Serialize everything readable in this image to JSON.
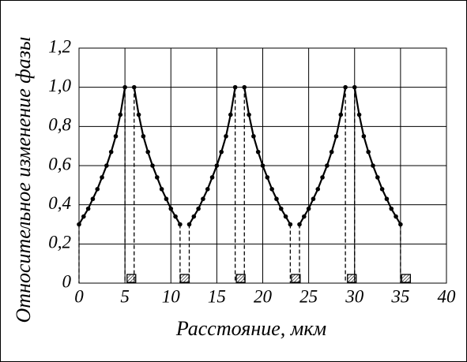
{
  "chart_data": {
    "type": "line",
    "xlabel": "Расстояние, мкм",
    "ylabel": "Относительное изменение фазы",
    "xlim": [
      0,
      40
    ],
    "xticks": [
      0,
      5,
      10,
      15,
      20,
      25,
      30,
      35,
      40
    ],
    "ylim": [
      0,
      1.2
    ],
    "yticks": [
      0,
      {
        "value": 0.2,
        "label": "0,2"
      },
      {
        "value": 0.4,
        "label": "0,4"
      },
      {
        "value": 0.6,
        "label": "0,6"
      },
      {
        "value": 0.8,
        "label": "0,8"
      },
      {
        "value": 1.0,
        "label": "1,0"
      },
      {
        "value": 1.2,
        "label": "1,2"
      }
    ],
    "grid": true,
    "color": "#000000",
    "series": [
      {
        "x": [
          0,
          0.5,
          1,
          1.5,
          2,
          2.5,
          3,
          3.5,
          4,
          4.5,
          5
        ],
        "values": [
          0.3,
          0.34,
          0.38,
          0.43,
          0.48,
          0.54,
          0.6,
          0.67,
          0.75,
          0.86,
          1.0
        ]
      },
      {
        "x": [
          6,
          6.5,
          7,
          7.5,
          8,
          8.5,
          9,
          9.5,
          10,
          10.5,
          11
        ],
        "values": [
          1.0,
          0.86,
          0.75,
          0.67,
          0.6,
          0.54,
          0.48,
          0.43,
          0.38,
          0.34,
          0.3
        ]
      },
      {
        "x": [
          12,
          12.5,
          13,
          13.5,
          14,
          14.5,
          15,
          15.5,
          16,
          16.5,
          17
        ],
        "values": [
          0.3,
          0.34,
          0.38,
          0.43,
          0.48,
          0.54,
          0.6,
          0.67,
          0.75,
          0.86,
          1.0
        ]
      },
      {
        "x": [
          18,
          18.5,
          19,
          19.5,
          20,
          20.5,
          21,
          21.5,
          22,
          22.5,
          23
        ],
        "values": [
          1.0,
          0.86,
          0.75,
          0.67,
          0.6,
          0.54,
          0.48,
          0.43,
          0.38,
          0.34,
          0.3
        ]
      },
      {
        "x": [
          24,
          24.5,
          25,
          25.5,
          26,
          26.5,
          27,
          27.5,
          28,
          28.5,
          29
        ],
        "values": [
          0.3,
          0.34,
          0.38,
          0.43,
          0.48,
          0.54,
          0.6,
          0.67,
          0.75,
          0.86,
          1.0
        ]
      },
      {
        "x": [
          30,
          30.5,
          31,
          31.5,
          32,
          32.5,
          33,
          33.5,
          34,
          34.5,
          35
        ],
        "values": [
          1.0,
          0.86,
          0.75,
          0.67,
          0.6,
          0.54,
          0.48,
          0.43,
          0.38,
          0.34,
          0.3
        ]
      }
    ],
    "markers_x": [
      5.7,
      11.5,
      17.6,
      23.6,
      29.7,
      35.6
    ]
  }
}
